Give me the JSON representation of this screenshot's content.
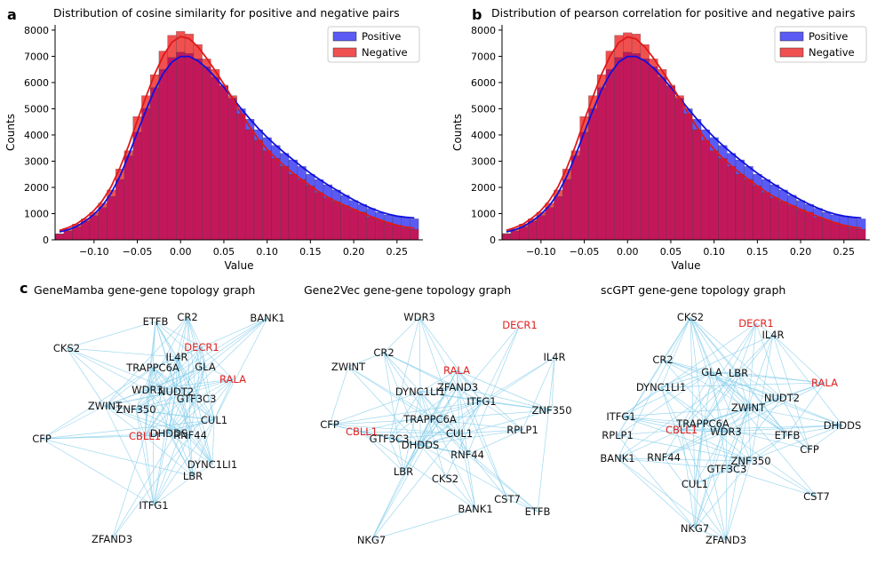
{
  "panel_letters": {
    "a": "a",
    "b": "b",
    "c": "c"
  },
  "colors": {
    "positive_fill": "#5a5af5",
    "negative_fill": "#f05050",
    "overlap_fill": "#c2185b",
    "positive_line": "#1010dd",
    "negative_line": "#e01818",
    "edge": "#87ceeb",
    "highlight_label": "#e02020"
  },
  "chart_data": [
    {
      "type": "bar",
      "title": "Distribution of cosine similarity for positive and negative pairs",
      "xlabel": "Value",
      "ylabel": "Counts",
      "xlim": [
        -0.145,
        0.28
      ],
      "ylim": [
        0,
        8200
      ],
      "xticks": [
        -0.1,
        -0.05,
        0.0,
        0.05,
        0.1,
        0.15,
        0.2,
        0.25
      ],
      "xtick_labels": [
        "−0.10",
        "−0.05",
        "0.00",
        "0.05",
        "0.10",
        "0.15",
        "0.20",
        "0.25"
      ],
      "yticks": [
        0,
        1000,
        2000,
        3000,
        4000,
        5000,
        6000,
        7000,
        8000
      ],
      "ytick_labels": [
        "0",
        "1000",
        "2000",
        "3000",
        "4000",
        "5000",
        "6000",
        "7000",
        "8000"
      ],
      "legend": {
        "position": "top-right",
        "entries": [
          "Positive",
          "Negative"
        ]
      },
      "bin_start": -0.145,
      "bin_width": 0.01,
      "series": [
        {
          "name": "Positive",
          "values": [
            220,
            330,
            480,
            700,
            920,
            1230,
            1650,
            2300,
            3200,
            4100,
            5000,
            5800,
            6500,
            6950,
            7150,
            7100,
            6900,
            6600,
            6200,
            5850,
            5400,
            5000,
            4600,
            4200,
            3900,
            3600,
            3300,
            3050,
            2800,
            2500,
            2300,
            2100,
            1900,
            1700,
            1500,
            1350,
            1200,
            1050,
            950,
            900,
            850,
            800
          ]
        },
        {
          "name": "Negative",
          "values": [
            230,
            420,
            600,
            800,
            1050,
            1400,
            1900,
            2700,
            3400,
            4700,
            5500,
            6300,
            7200,
            7800,
            7950,
            7850,
            7450,
            6900,
            6500,
            5900,
            5500,
            4800,
            4200,
            3800,
            3400,
            3100,
            2800,
            2500,
            2300,
            2050,
            1800,
            1600,
            1450,
            1300,
            1150,
            1050,
            850,
            750,
            650,
            550,
            450,
            400
          ]
        }
      ]
    },
    {
      "type": "bar",
      "title": "Distribution of pearson correlation for positive and negative pairs",
      "xlabel": "Value",
      "ylabel": "Counts",
      "xlim": [
        -0.145,
        0.28
      ],
      "ylim": [
        0,
        8200
      ],
      "xticks": [
        -0.1,
        -0.05,
        0.0,
        0.05,
        0.1,
        0.15,
        0.2,
        0.25
      ],
      "xtick_labels": [
        "−0.10",
        "−0.05",
        "0.00",
        "0.05",
        "0.10",
        "0.15",
        "0.20",
        "0.25"
      ],
      "yticks": [
        0,
        1000,
        2000,
        3000,
        4000,
        5000,
        6000,
        7000,
        8000
      ],
      "ytick_labels": [
        "0",
        "1000",
        "2000",
        "3000",
        "4000",
        "5000",
        "6000",
        "7000",
        "8000"
      ],
      "legend": {
        "position": "top-right",
        "entries": [
          "Positive",
          "Negative"
        ]
      },
      "bin_start": -0.145,
      "bin_width": 0.01,
      "series": [
        {
          "name": "Positive",
          "values": [
            220,
            330,
            480,
            700,
            920,
            1230,
            1650,
            2300,
            3200,
            4100,
            5000,
            5800,
            6500,
            6950,
            7150,
            7100,
            6900,
            6600,
            6200,
            5850,
            5400,
            5000,
            4600,
            4200,
            3900,
            3600,
            3300,
            3050,
            2800,
            2500,
            2300,
            2100,
            1900,
            1700,
            1500,
            1350,
            1200,
            1050,
            950,
            900,
            850,
            800
          ]
        },
        {
          "name": "Negative",
          "values": [
            240,
            420,
            600,
            800,
            1050,
            1400,
            1900,
            2700,
            3400,
            4700,
            5500,
            6300,
            7200,
            7800,
            7900,
            7850,
            7450,
            6900,
            6500,
            5900,
            5500,
            4800,
            4200,
            3800,
            3400,
            3100,
            2800,
            2500,
            2300,
            2050,
            1800,
            1600,
            1450,
            1300,
            1150,
            1050,
            850,
            750,
            650,
            550,
            450,
            400
          ]
        }
      ]
    }
  ],
  "graphs": [
    {
      "title": "GeneMamba gene-gene topology graph",
      "highlighted": [
        "DECR1",
        "RALA",
        "CBLL1"
      ],
      "nodes": [
        "ETFB",
        "CR2",
        "BANK1",
        "CKS2",
        "DECR1",
        "IL4R",
        "TRAPPC6A",
        "GLA",
        "RALA",
        "WDR3",
        "NUDT2",
        "GTF3C3",
        "ZWINT",
        "ZNF350",
        "CUL1",
        "CFP",
        "CBLL1",
        "DHDDS",
        "RNF44",
        "DYNC1LI1",
        "LBR",
        "ITFG1",
        "ZFAND3"
      ]
    },
    {
      "title": "Gene2Vec gene-gene topology graph",
      "highlighted": [
        "DECR1",
        "RALA",
        "CBLL1"
      ],
      "nodes": [
        "WDR3",
        "DECR1",
        "CR2",
        "IL4R",
        "ZWINT",
        "RALA",
        "ZFAND3",
        "DYNC1LI1",
        "ITFG1",
        "ZNF350",
        "CFP",
        "TRAPPC6A",
        "CBLL1",
        "CUL1",
        "RPLP1",
        "GTF3C3",
        "DHDDS",
        "RNF44",
        "LBR",
        "CKS2",
        "CST7",
        "BANK1",
        "ETFB",
        "NKG7"
      ]
    },
    {
      "title": "scGPT gene-gene topology graph",
      "highlighted": [
        "DECR1",
        "RALA",
        "CBLL1"
      ],
      "nodes": [
        "CKS2",
        "DECR1",
        "IL4R",
        "CR2",
        "GLA",
        "LBR",
        "RALA",
        "DYNC1LI1",
        "NUDT2",
        "ZWINT",
        "ITFG1",
        "TRAPPC6A",
        "DHDDS",
        "RPLP1",
        "CBLL1",
        "WDR3",
        "ETFB",
        "CFP",
        "BANK1",
        "RNF44",
        "ZNF350",
        "GTF3C3",
        "CUL1",
        "CST7",
        "NKG7",
        "ZFAND3"
      ]
    }
  ]
}
